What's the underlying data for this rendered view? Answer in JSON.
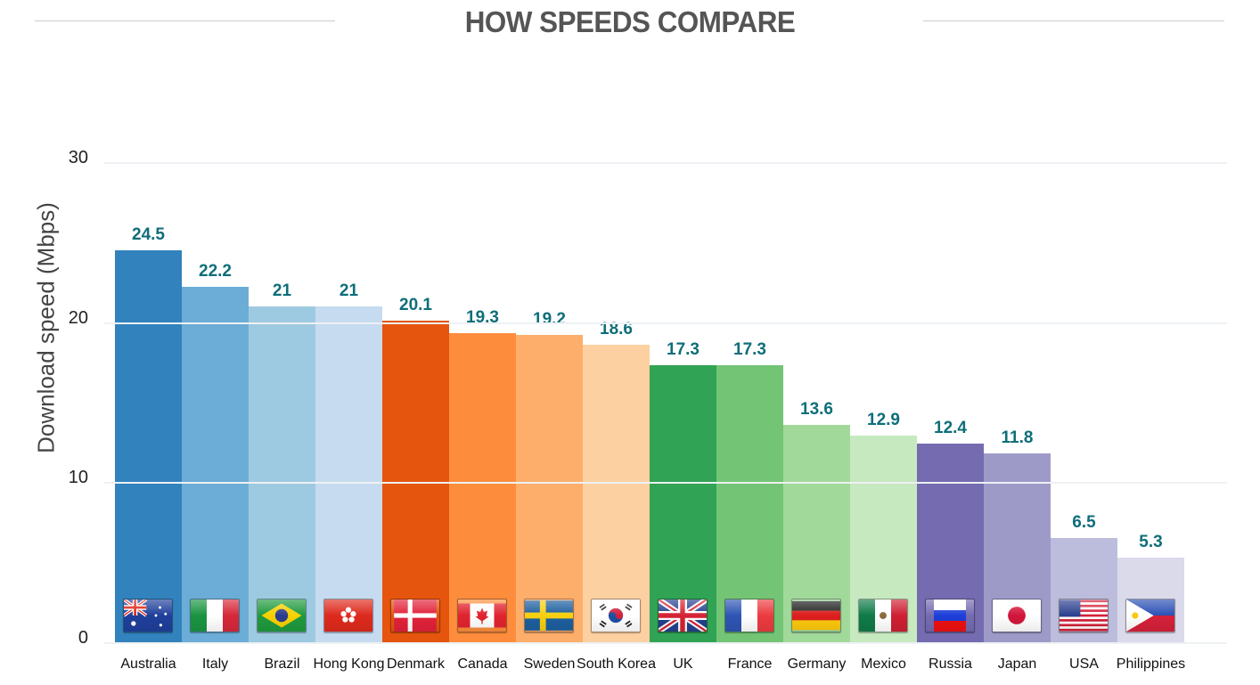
{
  "chart_data": {
    "type": "bar",
    "title": "HOW SPEEDS COMPARE",
    "xlabel": "",
    "ylabel": "Download speed (Mbps)",
    "ylim": [
      0,
      30
    ],
    "yticks": [
      0,
      10,
      20,
      30
    ],
    "grid": true,
    "legend": "none",
    "categories": [
      "Australia",
      "Italy",
      "Brazil",
      "Hong Kong",
      "Denmark",
      "Canada",
      "Sweden",
      "South Korea",
      "UK",
      "France",
      "Germany",
      "Mexico",
      "Russia",
      "Japan",
      "USA",
      "Philippines"
    ],
    "values": [
      24.5,
      22.2,
      21,
      21,
      20.1,
      19.3,
      19.2,
      18.6,
      17.3,
      17.3,
      13.6,
      12.9,
      12.4,
      11.8,
      6.5,
      5.3
    ],
    "value_labels": [
      "24.5",
      "22.2",
      "21",
      "21",
      "20.1",
      "19.3",
      "19.2",
      "18.6",
      "17.3",
      "17.3",
      "13.6",
      "12.9",
      "12.4",
      "11.8",
      "6.5",
      "5.3"
    ],
    "colors": [
      "#3282bd",
      "#6badd6",
      "#9ecae1",
      "#c6dbef",
      "#e6550d",
      "#fd8d3c",
      "#fdae6b",
      "#fdd0a2",
      "#31a354",
      "#74c476",
      "#a1d99b",
      "#c7e9c0",
      "#756bb1",
      "#9e9ac8",
      "#bcbddc",
      "#dadaeb"
    ],
    "flag_icons": [
      "australia-flag-icon",
      "italy-flag-icon",
      "brazil-flag-icon",
      "hong-kong-flag-icon",
      "denmark-flag-icon",
      "canada-flag-icon",
      "sweden-flag-icon",
      "south-korea-flag-icon",
      "uk-flag-icon",
      "france-flag-icon",
      "germany-flag-icon",
      "mexico-flag-icon",
      "russia-flag-icon",
      "japan-flag-icon",
      "usa-flag-icon",
      "philippines-flag-icon"
    ],
    "value_label_color": "#0e6e7a"
  }
}
